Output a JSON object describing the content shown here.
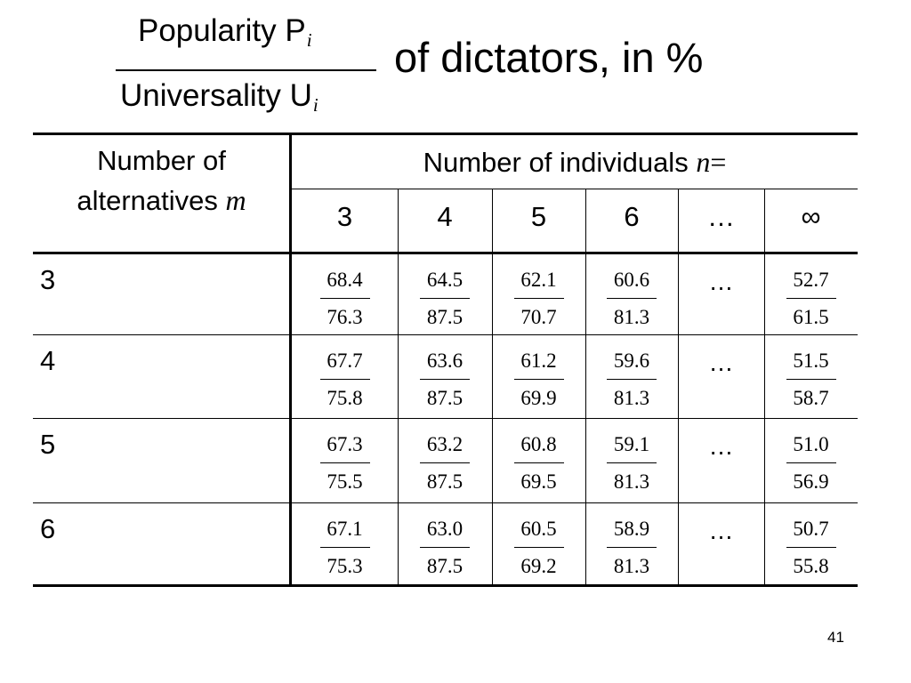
{
  "title": {
    "numerator": "Popularity  P",
    "numerator_sub": "i",
    "denominator": "Universality  U",
    "denominator_sub": "i",
    "rest": "of dictators, in %"
  },
  "table": {
    "header_m_line1": "Number of",
    "header_m_line2": "alternatives",
    "header_m_var": "m",
    "header_n_text": "Number of individuals",
    "header_n_var": "n",
    "header_n_eq": "=",
    "n_values": [
      "3",
      "4",
      "5",
      "6",
      "…",
      "∞"
    ],
    "rows": [
      {
        "m": "3",
        "cells": [
          {
            "p": "68.4",
            "u": "76.3"
          },
          {
            "p": "64.5",
            "u": "87.5"
          },
          {
            "p": "62.1",
            "u": "70.7"
          },
          {
            "p": "60.6",
            "u": "81.3"
          },
          {
            "dots": "…"
          },
          {
            "p": "52.7",
            "u": "61.5"
          }
        ]
      },
      {
        "m": "4",
        "cells": [
          {
            "p": "67.7",
            "u": "75.8"
          },
          {
            "p": "63.6",
            "u": "87.5"
          },
          {
            "p": "61.2",
            "u": "69.9"
          },
          {
            "p": "59.6",
            "u": "81.3"
          },
          {
            "dots": "…"
          },
          {
            "p": "51.5",
            "u": "58.7"
          }
        ]
      },
      {
        "m": "5",
        "cells": [
          {
            "p": "67.3",
            "u": "75.5"
          },
          {
            "p": "63.2",
            "u": "87.5"
          },
          {
            "p": "60.8",
            "u": "69.5"
          },
          {
            "p": "59.1",
            "u": "81.3"
          },
          {
            "dots": "…"
          },
          {
            "p": "51.0",
            "u": "56.9"
          }
        ]
      },
      {
        "m": "6",
        "cells": [
          {
            "p": "67.1",
            "u": "75.3"
          },
          {
            "p": "63.0",
            "u": "87.5"
          },
          {
            "p": "60.5",
            "u": "69.2"
          },
          {
            "p": "58.9",
            "u": "81.3"
          },
          {
            "dots": "…"
          },
          {
            "p": "50.7",
            "u": "55.8"
          }
        ]
      }
    ]
  },
  "page_number": "41"
}
